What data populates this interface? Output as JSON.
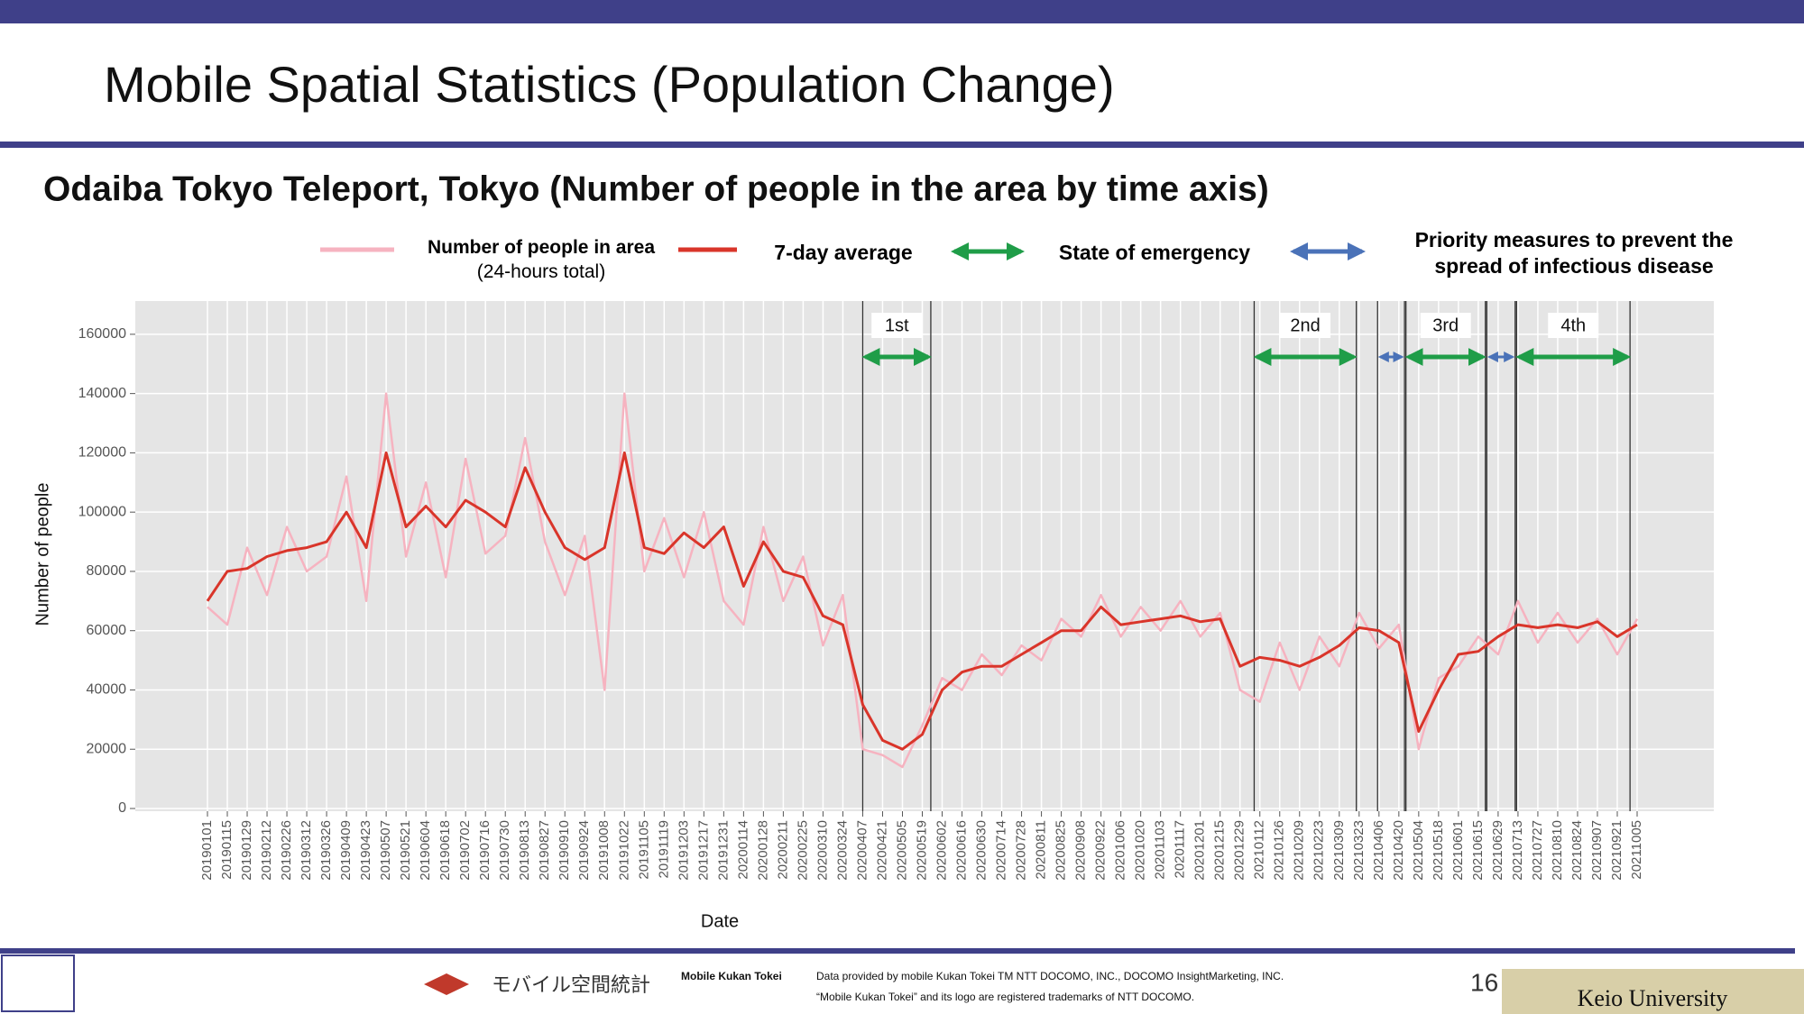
{
  "header": {
    "title": "Mobile Spatial Statistics (Population Change)"
  },
  "chart_data": {
    "type": "line",
    "title": "Odaiba Tokyo Teleport, Tokyo (Number of people in the area by time axis)",
    "xlabel": "Date",
    "ylabel": "Number of people",
    "x": [
      "20190101",
      "20190115",
      "20190129",
      "20190212",
      "20190226",
      "20190312",
      "20190326",
      "20190409",
      "20190423",
      "20190507",
      "20190521",
      "20190604",
      "20190618",
      "20190702",
      "20190716",
      "20190730",
      "20190813",
      "20190827",
      "20190910",
      "20190924",
      "20191008",
      "20191022",
      "20191105",
      "20191119",
      "20191203",
      "20191217",
      "20191231",
      "20200114",
      "20200128",
      "20200211",
      "20200225",
      "20200310",
      "20200324",
      "20200407",
      "20200421",
      "20200505",
      "20200519",
      "20200602",
      "20200616",
      "20200630",
      "20200714",
      "20200728",
      "20200811",
      "20200825",
      "20200908",
      "20200922",
      "20201006",
      "20201020",
      "20201103",
      "20201117",
      "20201201",
      "20201215",
      "20201229",
      "20210112",
      "20210126",
      "20210209",
      "20210223",
      "20210309",
      "20210323",
      "20210406",
      "20210420",
      "20210504",
      "20210518",
      "20210601",
      "20210615",
      "20210629",
      "20210713",
      "20210727",
      "20210810",
      "20210824",
      "20210907",
      "20210921",
      "20211005"
    ],
    "series": [
      {
        "name": "Number of people in area",
        "note": "(24-hours total)",
        "color": "#f6b3c0",
        "values": [
          68000,
          62000,
          88000,
          72000,
          95000,
          80000,
          85000,
          112000,
          70000,
          140000,
          85000,
          110000,
          78000,
          118000,
          86000,
          92000,
          125000,
          90000,
          72000,
          92000,
          40000,
          140000,
          80000,
          98000,
          78000,
          100000,
          70000,
          62000,
          95000,
          70000,
          85000,
          55000,
          72000,
          20000,
          18000,
          14000,
          28000,
          44000,
          40000,
          52000,
          45000,
          55000,
          50000,
          64000,
          58000,
          72000,
          58000,
          68000,
          60000,
          70000,
          58000,
          66000,
          40000,
          36000,
          56000,
          40000,
          58000,
          48000,
          66000,
          54000,
          62000,
          20000,
          44000,
          48000,
          58000,
          52000,
          70000,
          56000,
          66000,
          56000,
          64000,
          52000,
          64000
        ]
      },
      {
        "name": "7-day average",
        "color": "#d9352a",
        "values": [
          70000,
          80000,
          81000,
          85000,
          87000,
          88000,
          90000,
          100000,
          88000,
          120000,
          95000,
          102000,
          95000,
          104000,
          100000,
          95000,
          115000,
          100000,
          88000,
          84000,
          88000,
          120000,
          88000,
          86000,
          93000,
          88000,
          95000,
          75000,
          90000,
          80000,
          78000,
          65000,
          62000,
          35000,
          23000,
          20000,
          25000,
          40000,
          46000,
          48000,
          48000,
          52000,
          56000,
          60000,
          60000,
          68000,
          62000,
          63000,
          64000,
          65000,
          63000,
          64000,
          48000,
          51000,
          50000,
          48000,
          51000,
          55000,
          61000,
          60000,
          56000,
          26000,
          40000,
          52000,
          53000,
          58000,
          62000,
          61000,
          62000,
          61000,
          63000,
          58000,
          62000
        ]
      }
    ],
    "ylim": [
      0,
      170000
    ],
    "yticks": [
      0,
      20000,
      40000,
      60000,
      80000,
      100000,
      120000,
      140000,
      160000
    ],
    "grid": true,
    "period_kinds": {
      "emergency": {
        "name": "State of emergency",
        "color": "#1f9d48"
      },
      "priority": {
        "name": "Priority measures to prevent the spread of infectious disease",
        "color": "#4a72b8"
      }
    },
    "periods": [
      {
        "kind": "emergency",
        "label": "1st",
        "start": "20200407",
        "end": "20200525"
      },
      {
        "kind": "emergency",
        "label": "2nd",
        "start": "20210108",
        "end": "20210321"
      },
      {
        "kind": "priority",
        "start": "20210405",
        "end": "20210424"
      },
      {
        "kind": "emergency",
        "label": "3rd",
        "start": "20210425",
        "end": "20210620"
      },
      {
        "kind": "priority",
        "start": "20210621",
        "end": "20210711"
      },
      {
        "kind": "emergency",
        "label": "4th",
        "start": "20210712",
        "end": "20210930"
      }
    ]
  },
  "footer": {
    "logo_text": "モバイル空間統計",
    "brand": "Mobile Kukan Tokei",
    "credit": "Data provided by mobile Kukan Tokei TM NTT DOCOMO, INC., DOCOMO InsightMarketing, INC.",
    "trademark": "“Mobile Kukan Tokei” and its logo are registered trademarks of NTT DOCOMO.",
    "page_number": "16",
    "university": "Keio University"
  }
}
